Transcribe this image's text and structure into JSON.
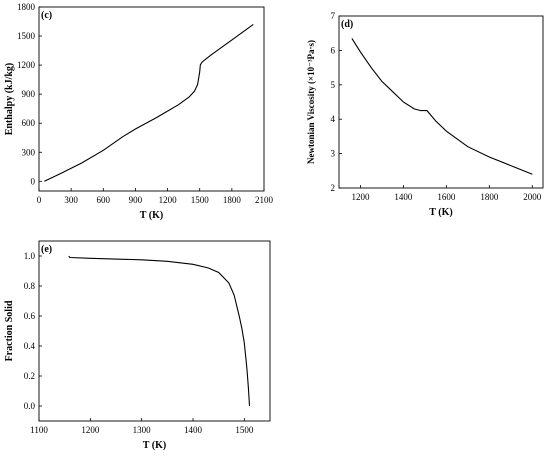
{
  "chart_data": [
    {
      "type": "line",
      "panel_label": "(c)",
      "xlabel": "T (K)",
      "ylabel": "Enthalpy (kJ/kg)",
      "xlim": [
        0,
        2100
      ],
      "ylim": [
        -100,
        1800
      ],
      "xticks": [
        "0",
        "300",
        "600",
        "900",
        "1200",
        "1500",
        "1800",
        "2100"
      ],
      "yticks": [
        "0",
        "300",
        "600",
        "900",
        "1200",
        "1500",
        "1800"
      ],
      "series": [
        {
          "x": [
            50,
            200,
            400,
            600,
            780,
            900,
            1100,
            1300,
            1400,
            1450,
            1480,
            1500,
            1505,
            1520,
            1600,
            1800,
            2000
          ],
          "y": [
            0,
            80,
            190,
            320,
            460,
            540,
            660,
            790,
            870,
            930,
            1000,
            1130,
            1200,
            1230,
            1300,
            1460,
            1620
          ]
        }
      ]
    },
    {
      "type": "line",
      "panel_label": "(d)",
      "xlabel": "T (K)",
      "ylabel": "Newtonian Viscosity (×10⁻³Pa·s)",
      "xlim": [
        1100,
        2050
      ],
      "ylim": [
        2,
        7
      ],
      "xticks": [
        "1200",
        "1400",
        "1600",
        "1800",
        "2000"
      ],
      "yticks": [
        "2",
        "3",
        "4",
        "5",
        "6",
        "7"
      ],
      "series": [
        {
          "x": [
            1160,
            1200,
            1250,
            1300,
            1350,
            1400,
            1450,
            1480,
            1510,
            1550,
            1600,
            1700,
            1800,
            1900,
            2000
          ],
          "y": [
            6.35,
            5.95,
            5.5,
            5.1,
            4.8,
            4.5,
            4.3,
            4.25,
            4.25,
            3.95,
            3.65,
            3.2,
            2.9,
            2.65,
            2.4
          ]
        }
      ]
    },
    {
      "type": "line",
      "panel_label": "(e)",
      "xlabel": "T (K)",
      "ylabel": "Fraction Solid",
      "xlim": [
        1100,
        1550
      ],
      "ylim": [
        -0.1,
        1.1
      ],
      "xticks": [
        "1100",
        "1200",
        "1300",
        "1400",
        "1500"
      ],
      "yticks": [
        "0.0",
        "0.2",
        "0.4",
        "0.6",
        "0.8",
        "1.0"
      ],
      "series": [
        {
          "x": [
            1158,
            1160,
            1200,
            1300,
            1350,
            1400,
            1430,
            1450,
            1470,
            1480,
            1490,
            1495,
            1500,
            1505,
            1508,
            1510
          ],
          "y": [
            1.0,
            0.99,
            0.985,
            0.975,
            0.965,
            0.945,
            0.92,
            0.89,
            0.82,
            0.74,
            0.6,
            0.52,
            0.42,
            0.25,
            0.12,
            0.0
          ]
        }
      ]
    }
  ]
}
